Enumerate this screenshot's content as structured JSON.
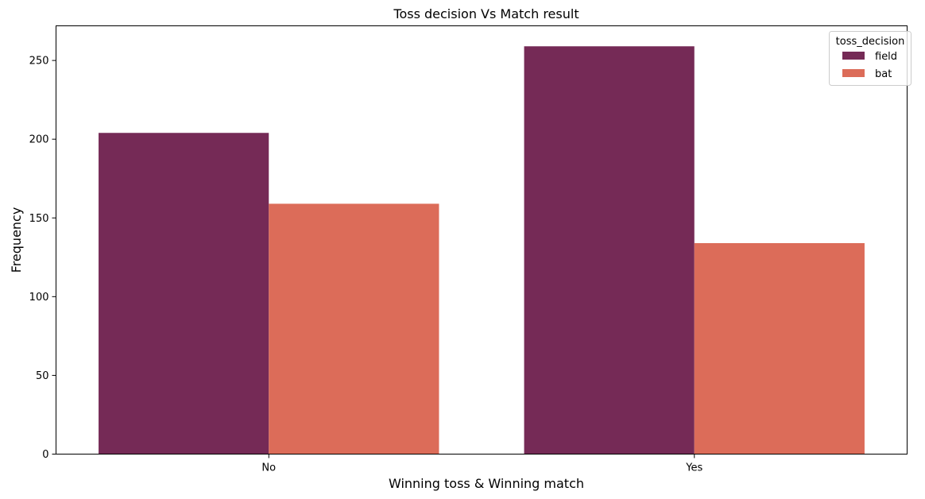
{
  "chart_data": {
    "type": "bar",
    "title": "Toss decision Vs Match result",
    "xlabel": "Winning toss & Winning match",
    "ylabel": "Frequency",
    "categories": [
      "No",
      "Yes"
    ],
    "ylim": [
      0,
      272
    ],
    "yticks": [
      0,
      50,
      100,
      150,
      200,
      250
    ],
    "grid": false,
    "legend": {
      "title": "toss_decision",
      "position": "top-right"
    },
    "series": [
      {
        "name": "field",
        "color": "#752a56",
        "values": [
          204,
          259
        ]
      },
      {
        "name": "bat",
        "color": "#dc6c59",
        "values": [
          159,
          134
        ]
      }
    ]
  }
}
